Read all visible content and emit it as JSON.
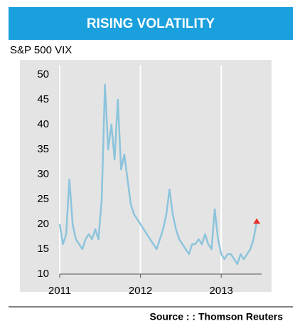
{
  "chart_data": {
    "type": "line",
    "title": "RISING VOLATILITY",
    "subtitle": "S&P 500 VIX",
    "source": "Source :  : Thomson Reuters",
    "x": [
      2011.0,
      2011.04,
      2011.08,
      2011.12,
      2011.16,
      2011.2,
      2011.24,
      2011.28,
      2011.32,
      2011.36,
      2011.4,
      2011.44,
      2011.48,
      2011.52,
      2011.56,
      2011.6,
      2011.64,
      2011.68,
      2011.72,
      2011.76,
      2011.8,
      2011.84,
      2011.88,
      2011.92,
      2011.96,
      2012.0,
      2012.04,
      2012.08,
      2012.12,
      2012.16,
      2012.2,
      2012.24,
      2012.28,
      2012.32,
      2012.36,
      2012.4,
      2012.44,
      2012.48,
      2012.52,
      2012.56,
      2012.6,
      2012.64,
      2012.68,
      2012.72,
      2012.76,
      2012.8,
      2012.84,
      2012.88,
      2012.92,
      2012.96,
      2013.0,
      2013.04,
      2013.08,
      2013.12,
      2013.16,
      2013.2,
      2013.24,
      2013.28,
      2013.32,
      2013.36,
      2013.4,
      2013.44
    ],
    "series": [
      {
        "name": "S&P 500 VIX",
        "color": "#8cc4dc",
        "marker_color": "#e8302c",
        "values": [
          20,
          16,
          18,
          29,
          20,
          17,
          16,
          15,
          17,
          18,
          17,
          19,
          17,
          25,
          48,
          35,
          40,
          33,
          45,
          31,
          34,
          29,
          24,
          22,
          21,
          20,
          19,
          18,
          17,
          16,
          15,
          17,
          19,
          22,
          27,
          22,
          19,
          17,
          16,
          15,
          14,
          16,
          16,
          17,
          16,
          18,
          16,
          15,
          23,
          17,
          14,
          13,
          14,
          14,
          13,
          12,
          14,
          13,
          14,
          15,
          17,
          20.5
        ]
      }
    ],
    "xlim": [
      2011,
      2013.5
    ],
    "xticks": [
      2011,
      2012,
      2013
    ],
    "ylim": [
      10,
      50
    ],
    "yticks": [
      10,
      15,
      20,
      25,
      30,
      35,
      40,
      45,
      50
    ],
    "grid": "x"
  }
}
